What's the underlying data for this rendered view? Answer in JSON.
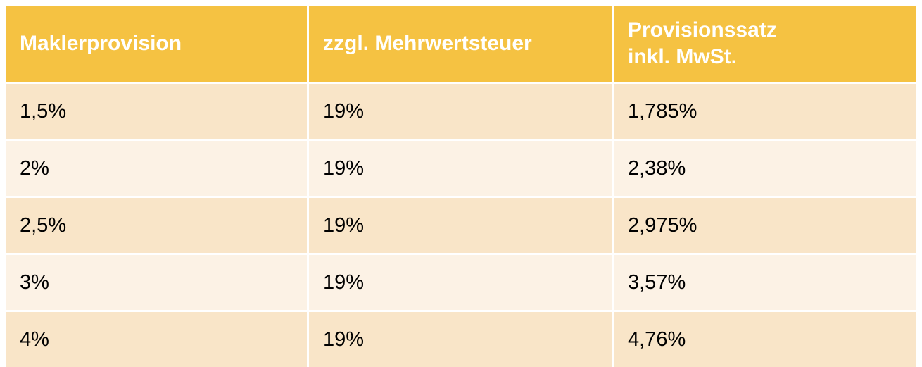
{
  "table": {
    "headers": [
      {
        "line1": "Maklerprovision",
        "line2": ""
      },
      {
        "line1": "zzgl. Mehrwertsteuer",
        "line2": ""
      },
      {
        "line1": "Provisionssatz",
        "line2": "inkl. MwSt."
      }
    ],
    "rows": [
      [
        "1,5%",
        "19%",
        "1,785%"
      ],
      [
        "2%",
        "19%",
        "2,38%"
      ],
      [
        "2,5%",
        "19%",
        "2,975%"
      ],
      [
        "3%",
        "19%",
        "3,57%"
      ],
      [
        "4%",
        "19%",
        "4,76%"
      ]
    ],
    "colors": {
      "header_bg": "#f5c242",
      "header_text": "#ffffff",
      "row_odd_bg": "#f9e5c8",
      "row_even_bg": "#fcf2e5"
    }
  }
}
